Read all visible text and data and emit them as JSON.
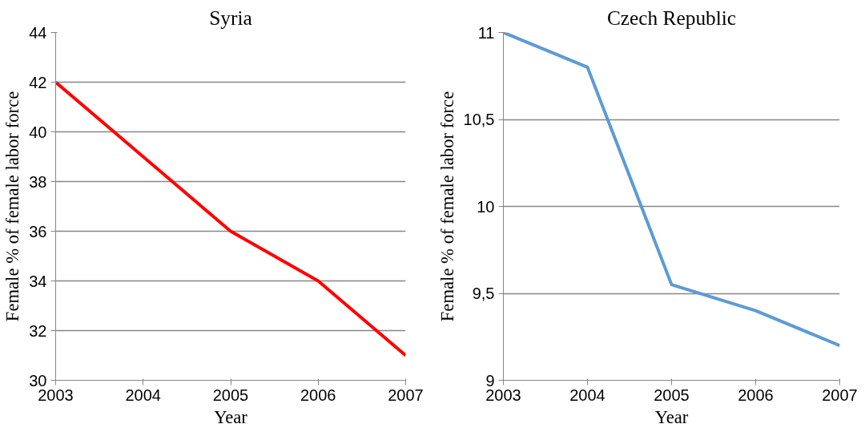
{
  "chart_data": [
    {
      "type": "line",
      "title": "Syria",
      "xlabel": "Year",
      "ylabel": "Female % of female labor force",
      "x": [
        2003,
        2004,
        2005,
        2006,
        2007
      ],
      "series": [
        {
          "color": "#ff0000",
          "values": [
            42,
            39,
            36,
            34,
            31
          ]
        }
      ],
      "xlim": [
        2003,
        2007
      ],
      "xticks": [
        2003,
        2004,
        2005,
        2006,
        2007
      ],
      "ylim": [
        30,
        44
      ],
      "yticks": [
        30,
        32,
        34,
        36,
        38,
        40,
        42,
        44
      ],
      "grid": "y"
    },
    {
      "type": "line",
      "title": "Czech Republic",
      "xlabel": "Year",
      "ylabel": "Female % of female labor force",
      "x": [
        2003,
        2004,
        2005,
        2006,
        2007
      ],
      "series": [
        {
          "color": "#5b9bd5",
          "values": [
            11,
            10.8,
            9.55,
            9.4,
            9.2
          ]
        }
      ],
      "xlim": [
        2003,
        2007
      ],
      "xticks": [
        2003,
        2004,
        2005,
        2006,
        2007
      ],
      "ylim": [
        9,
        11
      ],
      "yticks": [
        9,
        {
          "value": 9.5,
          "label": "9,5"
        },
        10,
        {
          "value": 10.5,
          "label": "10,5"
        },
        11
      ],
      "grid": "y"
    }
  ]
}
